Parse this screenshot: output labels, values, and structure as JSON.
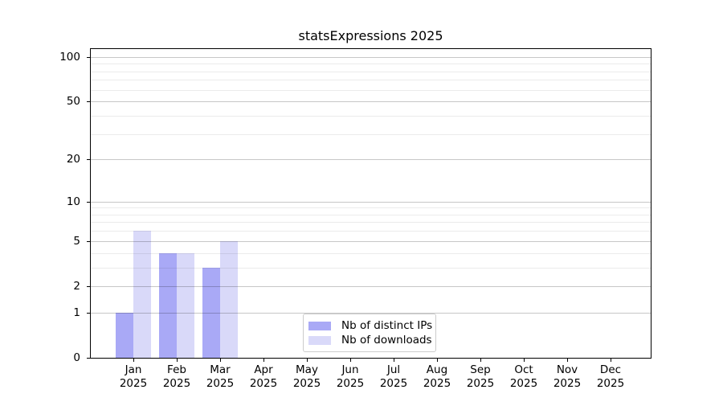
{
  "chart_data": {
    "type": "bar",
    "title": "statsExpressions 2025",
    "categories": [
      "Jan",
      "Feb",
      "Mar",
      "Apr",
      "May",
      "Jun",
      "Jul",
      "Aug",
      "Sep",
      "Oct",
      "Nov",
      "Dec"
    ],
    "category_year": "2025",
    "series": [
      {
        "name": "Nb of distinct IPs",
        "color": "#a9a9f6",
        "values": [
          1,
          4,
          3,
          0,
          0,
          0,
          0,
          0,
          0,
          0,
          0,
          0
        ]
      },
      {
        "name": "Nb of downloads",
        "color": "#d9d9f9",
        "values": [
          6,
          4,
          5,
          0,
          0,
          0,
          0,
          0,
          0,
          0,
          0,
          0
        ]
      }
    ],
    "y_scale": "log1p",
    "y_ticks": [
      0,
      1,
      2,
      5,
      10,
      20,
      50,
      100
    ],
    "y_minor_gridlines": [
      3,
      4,
      6,
      7,
      8,
      9,
      30,
      40,
      60,
      70,
      80,
      90
    ],
    "ylim": [
      0,
      113
    ],
    "grid": true,
    "legend_position": "lower center"
  },
  "colors": {
    "axis": "#000000",
    "major_grid": "#c7c7c7",
    "minor_grid": "#ebebeb",
    "legend_border": "#cccccc"
  }
}
